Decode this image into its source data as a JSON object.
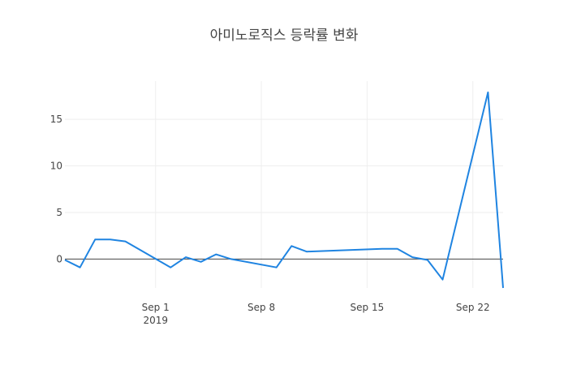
{
  "chart_data": {
    "type": "line",
    "title": "아미노로직스 등락률 변화",
    "xlabel": "",
    "ylabel": "",
    "x_axis": {
      "type": "date",
      "range": [
        "2019-08-26",
        "2019-09-24"
      ],
      "ticks": [
        {
          "date": "2019-09-01",
          "label": "Sep 1",
          "sublabel": "2019"
        },
        {
          "date": "2019-09-08",
          "label": "Sep 8",
          "sublabel": ""
        },
        {
          "date": "2019-09-15",
          "label": "Sep 15",
          "sublabel": ""
        },
        {
          "date": "2019-09-22",
          "label": "Sep 22",
          "sublabel": ""
        }
      ]
    },
    "y_axis": {
      "range": [
        -3.1,
        19.1
      ],
      "ticks": [
        0,
        5,
        10,
        15
      ],
      "zero_line": true
    },
    "grid": true,
    "legend": "none",
    "series": [
      {
        "color": "#1f84e1",
        "x": [
          "2019-08-26",
          "2019-08-27",
          "2019-08-28",
          "2019-08-29",
          "2019-08-30",
          "2019-09-02",
          "2019-09-03",
          "2019-09-04",
          "2019-09-05",
          "2019-09-06",
          "2019-09-09",
          "2019-09-10",
          "2019-09-11",
          "2019-09-16",
          "2019-09-17",
          "2019-09-18",
          "2019-09-19",
          "2019-09-20",
          "2019-09-23",
          "2019-09-24"
        ],
        "y": [
          -0.1,
          -0.9,
          2.1,
          2.1,
          1.9,
          -0.9,
          0.2,
          -0.3,
          0.5,
          0.0,
          -0.9,
          1.4,
          0.8,
          1.1,
          1.1,
          0.2,
          -0.1,
          -2.2,
          17.9,
          -3.1
        ]
      }
    ]
  }
}
